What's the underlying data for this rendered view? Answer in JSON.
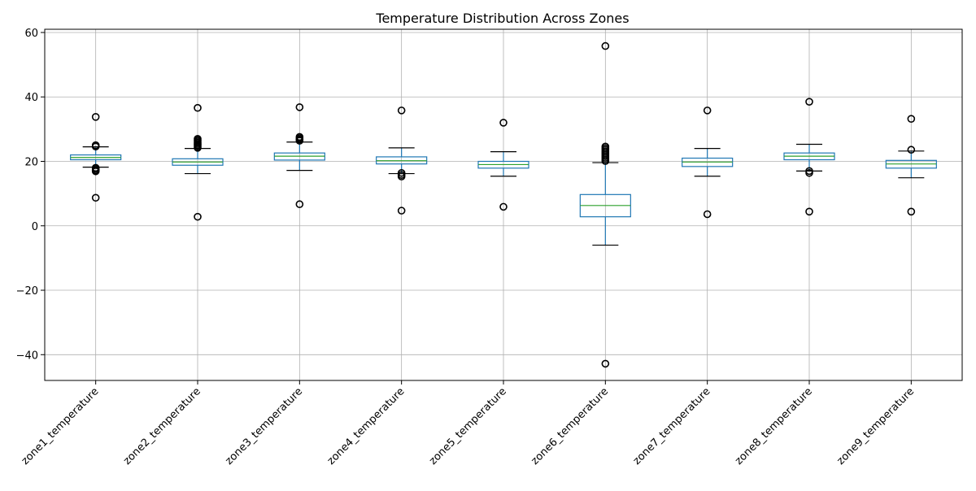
{
  "chart_data": {
    "type": "box",
    "title": "Temperature Distribution Across Zones",
    "xlabel": "",
    "ylabel": "",
    "ylim": [
      -48,
      61
    ],
    "yticks": [
      -40,
      -20,
      0,
      20,
      40,
      60
    ],
    "grid": true,
    "categories": [
      "zone1_temperature",
      "zone2_temperature",
      "zone3_temperature",
      "zone4_temperature",
      "zone5_temperature",
      "zone6_temperature",
      "zone7_temperature",
      "zone8_temperature",
      "zone9_temperature"
    ],
    "boxes": [
      {
        "whisker_low": 18.2,
        "q1": 20.5,
        "median": 21.2,
        "q3": 22.0,
        "whisker_high": 24.5,
        "outliers": [
          33.8,
          25.0,
          24.6,
          18.0,
          17.6,
          17.2,
          16.9,
          8.7
        ]
      },
      {
        "whisker_low": 16.2,
        "q1": 18.8,
        "median": 19.8,
        "q3": 20.8,
        "whisker_high": 24.0,
        "outliers": [
          36.6,
          27.0,
          26.6,
          26.2,
          25.8,
          25.4,
          25.0,
          24.6,
          24.2,
          2.8
        ]
      },
      {
        "whisker_low": 17.2,
        "q1": 20.4,
        "median": 21.6,
        "q3": 22.6,
        "whisker_high": 26.0,
        "outliers": [
          36.8,
          27.6,
          27.2,
          26.8,
          26.4,
          6.7
        ]
      },
      {
        "whisker_low": 16.2,
        "q1": 19.2,
        "median": 20.2,
        "q3": 21.4,
        "whisker_high": 24.2,
        "outliers": [
          35.8,
          16.4,
          15.8,
          15.3,
          4.7
        ]
      },
      {
        "whisker_low": 15.4,
        "q1": 17.9,
        "median": 19.0,
        "q3": 20.0,
        "whisker_high": 23.0,
        "outliers": [
          32.0,
          5.9
        ]
      },
      {
        "whisker_low": -6.0,
        "q1": 2.8,
        "median": 6.3,
        "q3": 9.7,
        "whisker_high": 19.6,
        "outliers": [
          55.8,
          24.6,
          24.1,
          23.6,
          23.1,
          22.6,
          22.1,
          21.6,
          21.1,
          20.6,
          20.1,
          -42.8
        ]
      },
      {
        "whisker_low": 15.4,
        "q1": 18.4,
        "median": 19.8,
        "q3": 21.0,
        "whisker_high": 24.0,
        "outliers": [
          35.8,
          3.6
        ]
      },
      {
        "whisker_low": 17.0,
        "q1": 20.5,
        "median": 21.6,
        "q3": 22.6,
        "whisker_high": 25.3,
        "outliers": [
          38.5,
          17.0,
          16.4,
          4.4
        ]
      },
      {
        "whisker_low": 14.9,
        "q1": 17.9,
        "median": 19.2,
        "q3": 20.3,
        "whisker_high": 23.2,
        "outliers": [
          33.2,
          23.6,
          4.4
        ]
      }
    ],
    "colors": {
      "box": "#1f77b4",
      "median": "#2ca02c",
      "whisker": "#1f77b4",
      "cap": "#000000",
      "outlier": "#000000",
      "grid": "#b0b0b0",
      "axes": "#000000"
    }
  }
}
